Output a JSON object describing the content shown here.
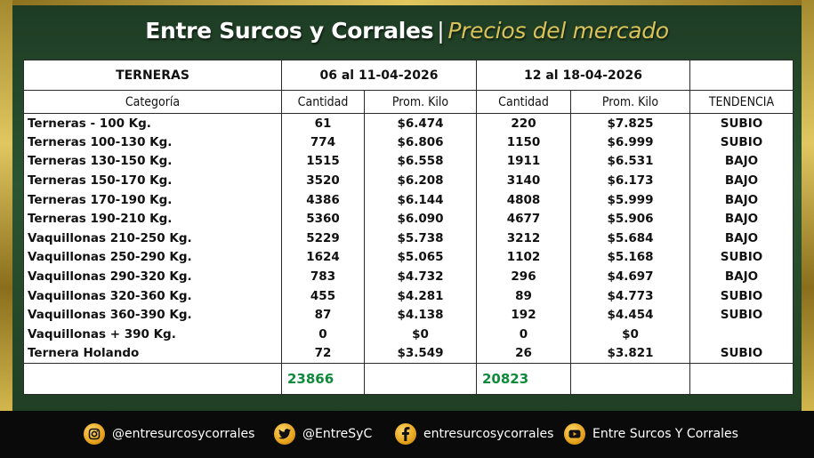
{
  "title": {
    "main": "Entre Surcos y Corrales",
    "separator": "|",
    "sub": "Precios del mercado"
  },
  "table": {
    "header_category": "TERNERAS",
    "period1": "06 al 11-04-2026",
    "period2": "12 al 18-04-2026",
    "col_categoria": "Categoría",
    "col_cantidad": "Cantidad",
    "col_prom": "Prom. Kilo",
    "col_tendencia": "TENDENCIA",
    "rows": [
      {
        "cat": "Terneras - 100 Kg.",
        "c1": "61",
        "p1": "$6.474",
        "c2": "220",
        "p2": "$7.825",
        "trend": "SUBIO"
      },
      {
        "cat": "Terneras 100-130 Kg.",
        "c1": "774",
        "p1": "$6.806",
        "c2": "1150",
        "p2": "$6.999",
        "trend": "SUBIO"
      },
      {
        "cat": "Terneras 130-150 Kg.",
        "c1": "1515",
        "p1": "$6.558",
        "c2": "1911",
        "p2": "$6.531",
        "trend": "BAJO"
      },
      {
        "cat": "Terneras 150-170 Kg.",
        "c1": "3520",
        "p1": "$6.208",
        "c2": "3140",
        "p2": "$6.173",
        "trend": "BAJO"
      },
      {
        "cat": "Terneras 170-190 Kg.",
        "c1": "4386",
        "p1": "$6.144",
        "c2": "4808",
        "p2": "$5.999",
        "trend": "BAJO"
      },
      {
        "cat": "Terneras 190-210 Kg.",
        "c1": "5360",
        "p1": "$6.090",
        "c2": "4677",
        "p2": "$5.906",
        "trend": "BAJO"
      },
      {
        "cat": "Vaquillonas 210-250 Kg.",
        "c1": "5229",
        "p1": "$5.738",
        "c2": "3212",
        "p2": "$5.684",
        "trend": "BAJO"
      },
      {
        "cat": "Vaquillonas 250-290 Kg.",
        "c1": "1624",
        "p1": "$5.065",
        "c2": "1102",
        "p2": "$5.168",
        "trend": "SUBIO"
      },
      {
        "cat": "Vaquillonas 290-320 Kg.",
        "c1": "783",
        "p1": "$4.732",
        "c2": "296",
        "p2": "$4.697",
        "trend": "BAJO"
      },
      {
        "cat": "Vaquillonas 320-360 Kg.",
        "c1": "455",
        "p1": "$4.281",
        "c2": "89",
        "p2": "$4.773",
        "trend": "SUBIO"
      },
      {
        "cat": "Vaquillonas 360-390 Kg.",
        "c1": "87",
        "p1": "$4.138",
        "c2": "192",
        "p2": "$4.454",
        "trend": "SUBIO"
      },
      {
        "cat": "Vaquillonas  + 390 Kg.",
        "c1": "0",
        "p1": "$0",
        "c2": "0",
        "p2": "$0",
        "trend": ""
      },
      {
        "cat": "Ternera Holando",
        "c1": "72",
        "p1": "$3.549",
        "c2": "26",
        "p2": "$3.821",
        "trend": "SUBIO"
      }
    ],
    "total1": "23866",
    "total2": "20823"
  },
  "colors": {
    "up": "#1f8f1f",
    "down": "#d31c1c",
    "total": "#0f8a3a",
    "accent_gold": "#d9c25a"
  },
  "footer": {
    "instagram": {
      "icon": "instagram-icon",
      "label": "@entresurcosycorrales"
    },
    "twitter": {
      "icon": "twitter-icon",
      "label": "@EntreSyC"
    },
    "facebook": {
      "icon": "facebook-icon",
      "label": "entresurcosycorrales"
    },
    "youtube": {
      "icon": "youtube-icon",
      "label": "Entre Surcos Y Corrales"
    }
  }
}
